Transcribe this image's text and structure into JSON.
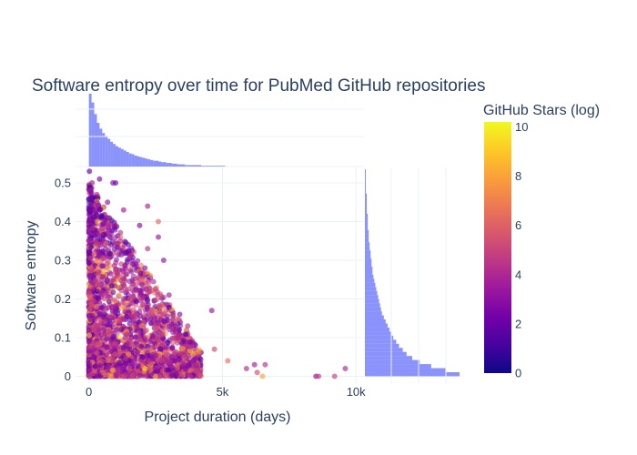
{
  "chart_data": {
    "type": "scatter",
    "title": "Software entropy over time for PubMed GitHub repositories",
    "xlabel": "Project duration (days)",
    "ylabel": "Software entropy",
    "xlim": [
      -500,
      10300
    ],
    "ylim": [
      -0.02,
      0.54
    ],
    "x_ticks": [
      {
        "value": 0,
        "label": "0"
      },
      {
        "value": 5000,
        "label": "5k"
      },
      {
        "value": 10000,
        "label": "10k"
      }
    ],
    "y_ticks": [
      {
        "value": 0,
        "label": "0"
      },
      {
        "value": 0.1,
        "label": "0.1"
      },
      {
        "value": 0.2,
        "label": "0.2"
      },
      {
        "value": 0.3,
        "label": "0.3"
      },
      {
        "value": 0.4,
        "label": "0.4"
      },
      {
        "value": 0.5,
        "label": "0.5"
      }
    ],
    "grid": true,
    "colorbar": {
      "title": "GitHub Stars (log)",
      "range": [
        0,
        10.2
      ],
      "ticks": [
        {
          "value": 0,
          "label": "0"
        },
        {
          "value": 2,
          "label": "2"
        },
        {
          "value": 4,
          "label": "4"
        },
        {
          "value": 6,
          "label": "6"
        },
        {
          "value": 8,
          "label": "8"
        },
        {
          "value": 10,
          "label": "10"
        }
      ],
      "colorscale": [
        "#0d0887",
        "#46039f",
        "#7201a8",
        "#9c179e",
        "#bd3786",
        "#d8576b",
        "#ed7953",
        "#fb9f3a",
        "#fdca26",
        "#f0f921"
      ]
    },
    "points": [
      {
        "x": 20,
        "y": 0.53,
        "c": 2.0
      },
      {
        "x": 120,
        "y": 0.5,
        "c": 3.5
      },
      {
        "x": 400,
        "y": 0.51,
        "c": 2.5
      },
      {
        "x": 900,
        "y": 0.5,
        "c": 3.0
      },
      {
        "x": 1000,
        "y": 0.5,
        "c": 2.2
      },
      {
        "x": 300,
        "y": 0.47,
        "c": 4.0
      },
      {
        "x": 700,
        "y": 0.45,
        "c": 3.2
      },
      {
        "x": 1300,
        "y": 0.43,
        "c": 3.5
      },
      {
        "x": 2200,
        "y": 0.44,
        "c": 3.8
      },
      {
        "x": 2600,
        "y": 0.4,
        "c": 6.2
      },
      {
        "x": 1900,
        "y": 0.39,
        "c": 2.8
      },
      {
        "x": 2600,
        "y": 0.36,
        "c": 3.4
      },
      {
        "x": 2800,
        "y": 0.3,
        "c": 3.2
      },
      {
        "x": 2200,
        "y": 0.33,
        "c": 4.4
      },
      {
        "x": 2100,
        "y": 0.28,
        "c": 3.0
      },
      {
        "x": 2000,
        "y": 0.25,
        "c": 6.5
      },
      {
        "x": 2300,
        "y": 0.26,
        "c": 6.8
      },
      {
        "x": 3000,
        "y": 0.21,
        "c": 3.6
      },
      {
        "x": 3400,
        "y": 0.16,
        "c": 3.0
      },
      {
        "x": 3700,
        "y": 0.13,
        "c": 4.2
      },
      {
        "x": 4600,
        "y": 0.17,
        "c": 3.3
      },
      {
        "x": 4700,
        "y": 0.07,
        "c": 5.2
      },
      {
        "x": 5200,
        "y": 0.04,
        "c": 6.5
      },
      {
        "x": 5900,
        "y": 0.02,
        "c": 4.1
      },
      {
        "x": 6300,
        "y": 0.01,
        "c": 5.4
      },
      {
        "x": 6200,
        "y": 0.03,
        "c": 3.6
      },
      {
        "x": 6500,
        "y": 0.0,
        "c": 8.0
      },
      {
        "x": 6600,
        "y": 0.03,
        "c": 4.4
      },
      {
        "x": 8500,
        "y": 0.0,
        "c": 3.2
      },
      {
        "x": 8600,
        "y": 0.0,
        "c": 4.5
      },
      {
        "x": 9200,
        "y": 0.0,
        "c": 4.8
      },
      {
        "x": 9600,
        "y": 0.02,
        "c": 3.9
      },
      {
        "x": 2100,
        "y": 0.02,
        "c": 9.5
      },
      {
        "x": 2500,
        "y": 0.0,
        "c": 8.8
      }
    ],
    "cloud_seed": 7,
    "cloud_count": 2600,
    "x_histogram": {
      "bin_width_days": 100,
      "counts": [
        100,
        88,
        72,
        60,
        52,
        46,
        42,
        38,
        34,
        31,
        28,
        26,
        24,
        22,
        20,
        18,
        17,
        15,
        14,
        13,
        12,
        11,
        10,
        9,
        8,
        8,
        7,
        6,
        6,
        5,
        5,
        4,
        4,
        3,
        3,
        3,
        2,
        2,
        2,
        2,
        2,
        2,
        1,
        1,
        1,
        1,
        1,
        1,
        1,
        1,
        1
      ]
    },
    "y_histogram": {
      "bin_width": 0.0105,
      "counts": [
        100,
        85,
        70,
        58,
        50,
        44,
        40,
        36,
        33,
        30,
        28,
        26,
        24,
        22,
        20,
        18,
        17,
        16,
        15,
        14,
        13,
        12,
        11,
        10,
        9,
        8,
        8,
        7,
        7,
        6,
        6,
        5,
        5,
        4,
        4,
        4,
        3,
        3,
        3,
        3,
        2,
        2,
        2,
        2,
        2,
        1,
        1,
        1,
        1,
        1,
        1
      ]
    }
  }
}
